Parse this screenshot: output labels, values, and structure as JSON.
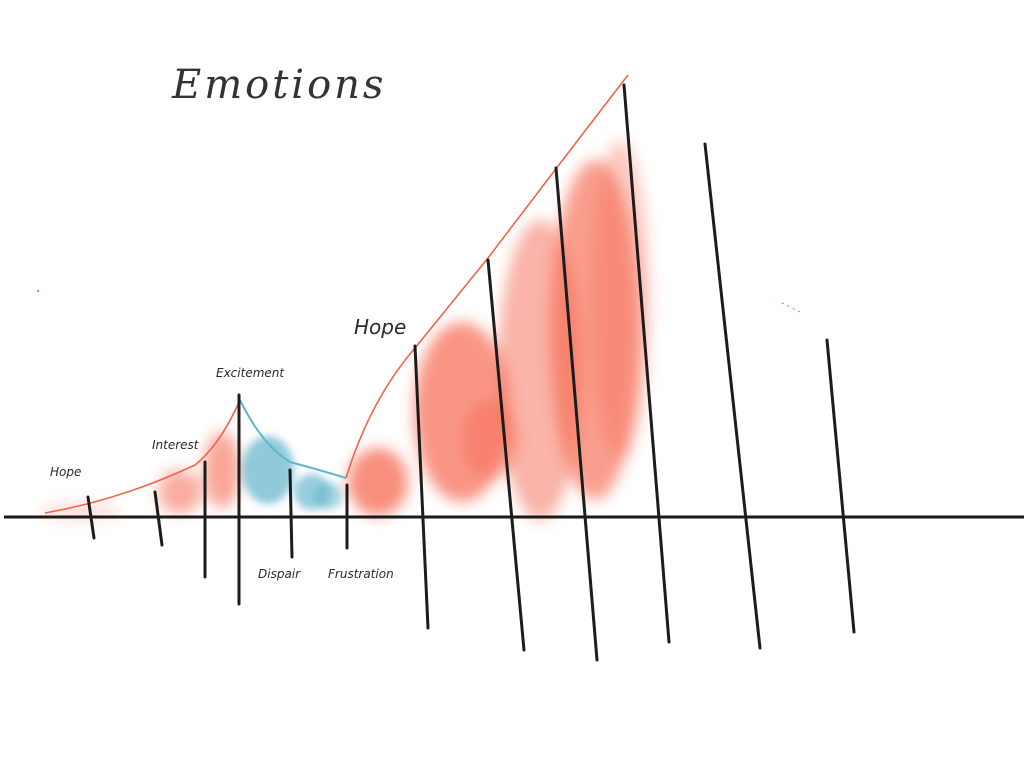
{
  "title": "Emotions",
  "labels": {
    "hope_1": "Hope",
    "interest": "Interest",
    "excitement": "Excitement",
    "dispair": "Dispair",
    "frustration": "Frustration",
    "hope_2": "Hope"
  },
  "colors": {
    "positive_fill": "#f66a52",
    "negative_fill": "#5fb2cb",
    "curve_positive": "#f0644a",
    "curve_negative": "#63b5cc",
    "ink": "#1c1c1c"
  }
}
